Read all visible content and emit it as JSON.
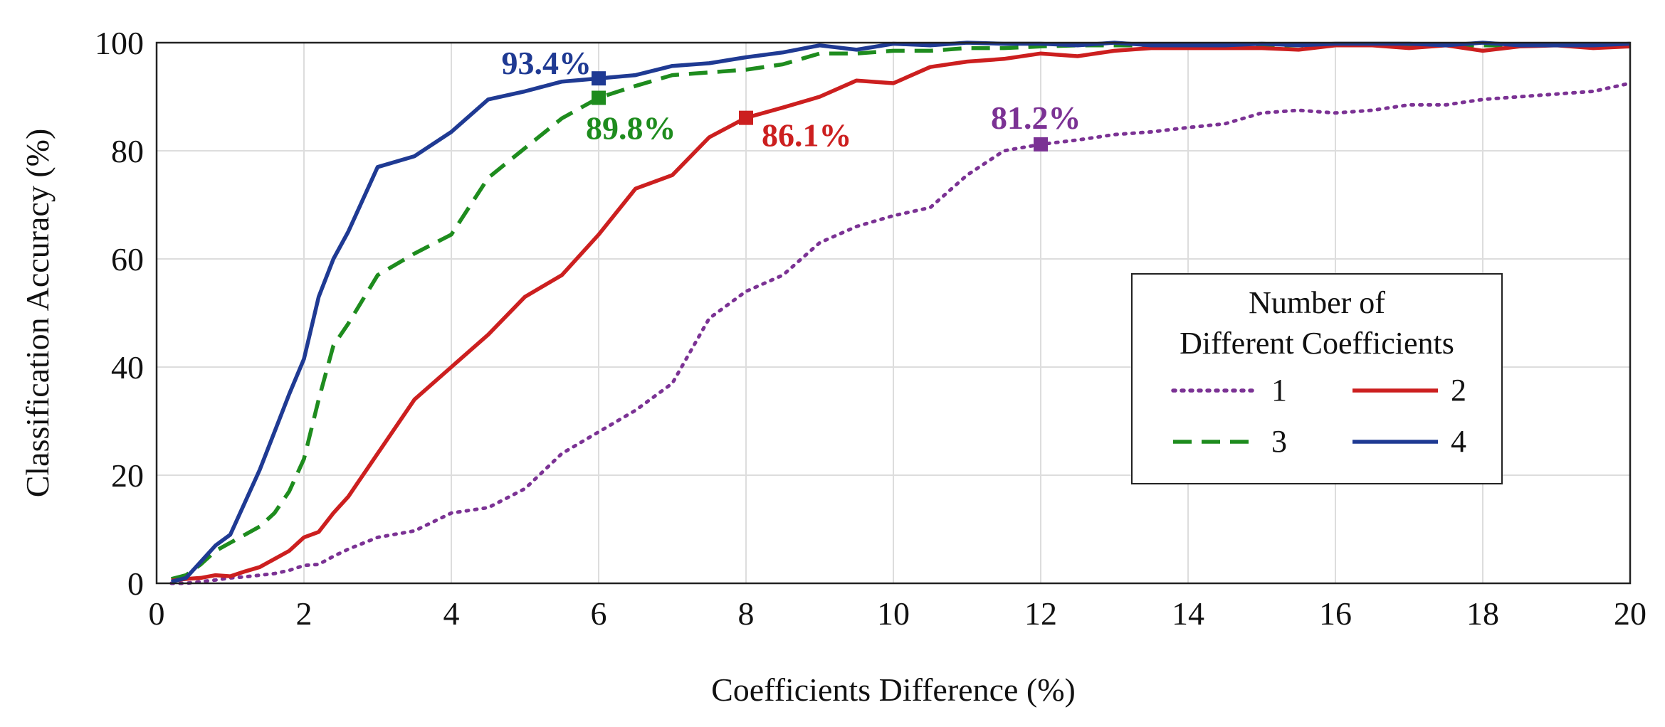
{
  "chart_data": {
    "type": "line",
    "xlabel": "Coefficients Difference (%)",
    "ylabel": "Classification Accuracy (%)",
    "xlim": [
      0,
      20
    ],
    "ylim": [
      0,
      100
    ],
    "xticks": [
      0,
      2,
      4,
      6,
      8,
      10,
      12,
      14,
      16,
      18,
      20
    ],
    "yticks": [
      0,
      20,
      40,
      60,
      80,
      100
    ],
    "grid": true,
    "legend": {
      "title_lines": [
        "Number of",
        "Different Coefficients"
      ],
      "placement": "center-right"
    },
    "series": [
      {
        "name": "1",
        "color": "#7b3294",
        "style": "dotted",
        "x": [
          0.2,
          0.4,
          0.6,
          0.8,
          1,
          1.2,
          1.4,
          1.6,
          1.8,
          2,
          2.2,
          2.4,
          2.6,
          3,
          3.5,
          4,
          4.5,
          5,
          5.5,
          6,
          6.5,
          7,
          7.5,
          8,
          8.5,
          9,
          9.5,
          10,
          10.5,
          11,
          11.5,
          12,
          12.5,
          13,
          13.5,
          14,
          14.5,
          15,
          15.5,
          16,
          16.5,
          17,
          17.5,
          18,
          18.5,
          19,
          19.5,
          20
        ],
        "values": [
          0,
          0,
          0.3,
          0.6,
          1,
          1.2,
          1.5,
          1.8,
          2.4,
          3.3,
          3.5,
          5,
          6.3,
          8.5,
          9.7,
          13,
          14,
          17.5,
          24,
          28,
          32,
          37,
          49,
          54,
          57,
          63,
          66,
          68,
          69.5,
          75.5,
          80,
          81.2,
          82,
          83,
          83.5,
          84.3,
          85,
          87,
          87.5,
          87,
          87.5,
          88.5,
          88.5,
          89.5,
          90,
          90.5,
          91,
          92.5
        ],
        "marker": {
          "x": 12,
          "y": 81.2,
          "label": "81.2%"
        }
      },
      {
        "name": "2",
        "color": "#cc1f1f",
        "style": "solid",
        "x": [
          0.2,
          0.4,
          0.6,
          0.8,
          1,
          1.2,
          1.4,
          1.6,
          1.8,
          2,
          2.2,
          2.4,
          2.6,
          3,
          3.5,
          4,
          4.5,
          5,
          5.5,
          6,
          6.5,
          7,
          7.5,
          8,
          8.5,
          9,
          9.5,
          10,
          10.5,
          11,
          11.5,
          12,
          12.5,
          13,
          13.5,
          14,
          14.5,
          15,
          15.5,
          16,
          16.5,
          17,
          17.5,
          18,
          18.5,
          19,
          19.5,
          20
        ],
        "values": [
          0.5,
          0.8,
          1,
          1.5,
          1.3,
          2.2,
          3,
          4.5,
          6,
          8.5,
          9.5,
          13,
          16,
          24,
          34,
          40,
          46,
          53,
          57,
          64.5,
          73,
          75.5,
          82.5,
          86.1,
          88,
          90,
          93,
          92.5,
          95.5,
          96.5,
          97,
          98,
          97.5,
          98.5,
          99,
          99,
          99,
          99,
          98.7,
          99.5,
          99.5,
          99,
          99.5,
          98.5,
          99.3,
          99.5,
          99,
          99.3
        ],
        "marker": {
          "x": 8,
          "y": 86.1,
          "label": "86.1%"
        }
      },
      {
        "name": "3",
        "color": "#1e8c1e",
        "style": "dashed",
        "x": [
          0.2,
          0.4,
          0.6,
          0.8,
          1,
          1.2,
          1.4,
          1.6,
          1.8,
          2,
          2.2,
          2.4,
          2.6,
          3,
          3.5,
          4,
          4.5,
          5,
          5.5,
          6,
          6.5,
          7,
          7.5,
          8,
          8.5,
          9,
          9.5,
          10,
          10.5,
          11,
          11.5,
          12,
          12.5,
          13,
          13.5,
          14,
          14.5,
          15,
          15.5,
          16,
          16.5,
          17,
          17.5,
          18,
          18.5,
          19,
          19.5,
          20
        ],
        "values": [
          0.8,
          1.5,
          3.5,
          6,
          7.5,
          9,
          10.5,
          13,
          17,
          23,
          34,
          44,
          48,
          57,
          61,
          64.5,
          75,
          80.5,
          86,
          89.8,
          92,
          94,
          94.5,
          95,
          96,
          98,
          98,
          98.5,
          98.5,
          99,
          99,
          99.3,
          99.5,
          99.5,
          99.5,
          99.5,
          99.5,
          99.5,
          99.5,
          99.5,
          99.5,
          99.5,
          99.5,
          99.5,
          99.5,
          99.5,
          99.5,
          99.5
        ],
        "marker": {
          "x": 6,
          "y": 89.8,
          "label": "89.8%"
        }
      },
      {
        "name": "4",
        "color": "#1f3a93",
        "style": "solid",
        "x": [
          0.2,
          0.4,
          0.6,
          0.8,
          1,
          1.2,
          1.4,
          1.6,
          1.8,
          2,
          2.2,
          2.4,
          2.6,
          3,
          3.5,
          4,
          4.5,
          5,
          5.5,
          6,
          6.5,
          7,
          7.5,
          8,
          8.5,
          9,
          9.5,
          10,
          10.5,
          11,
          11.5,
          12,
          12.5,
          13,
          13.5,
          14,
          14.5,
          15,
          15.5,
          16,
          16.5,
          17,
          17.5,
          18,
          18.5,
          19,
          19.5,
          20
        ],
        "values": [
          0.3,
          1,
          4,
          7,
          9,
          15,
          21,
          28,
          35,
          41.5,
          53,
          60,
          65,
          77,
          79,
          83.5,
          89.5,
          91,
          92.8,
          93.4,
          94,
          95.7,
          96.2,
          97.3,
          98.2,
          99.5,
          98.7,
          99.8,
          99.5,
          100,
          99.8,
          99.8,
          99.5,
          100,
          99.5,
          99.5,
          99.5,
          99.8,
          99.5,
          99.8,
          99.8,
          99.8,
          99.5,
          100,
          99.5,
          99.5,
          99.5,
          99.8
        ],
        "marker": {
          "x": 6,
          "y": 93.4,
          "label": "93.4%"
        }
      }
    ]
  }
}
